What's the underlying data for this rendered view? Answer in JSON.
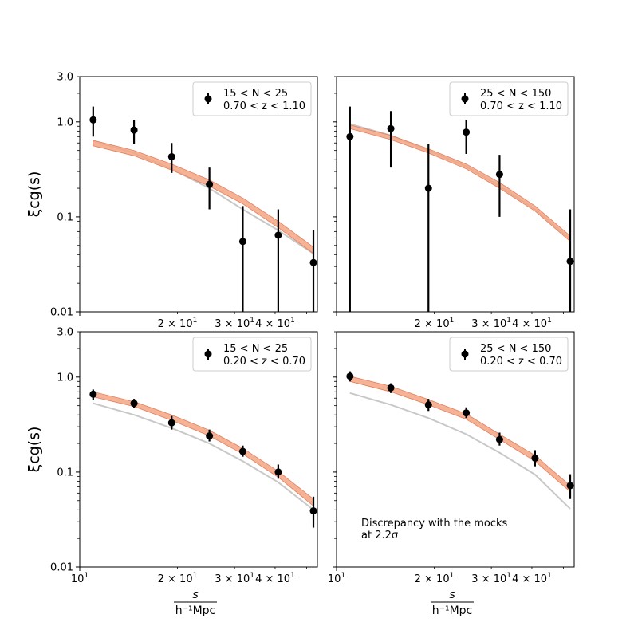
{
  "colors": {
    "model_band": "#f4a582",
    "model_line": "#e08060",
    "mock_line": "#c8c8c8",
    "data_points": "#000000",
    "axes": "#000000"
  },
  "chart_data": [
    {
      "type": "scatter",
      "panel": "top-left",
      "legend": {
        "line1": "15 < N < 25",
        "line2": "0.70 < z < 1.10",
        "placement": "top-right"
      },
      "ylabel": "ξcg(s)",
      "xlabel": "",
      "xlim": [
        10,
        54
      ],
      "ylim": [
        0.01,
        3.0
      ],
      "xscale": "log",
      "yscale": "log",
      "x_tick_labels": [
        "2 × 10^1",
        "3 × 10^1",
        "4 × 10^1"
      ],
      "y_tick_labels": [
        "0.01",
        "0.1",
        "1.0",
        "3.0"
      ],
      "points": {
        "x": [
          11.0,
          14.7,
          19.2,
          25.1,
          31.8,
          40.9,
          52.5
        ],
        "y": [
          1.05,
          0.82,
          0.43,
          0.22,
          0.055,
          0.064,
          0.033
        ],
        "y_lo": [
          0.7,
          0.58,
          0.29,
          0.12,
          0.01,
          0.01,
          0.01
        ],
        "y_hi": [
          1.45,
          1.05,
          0.6,
          0.33,
          0.13,
          0.12,
          0.073
        ]
      },
      "model": {
        "x": [
          11.0,
          14.7,
          19.2,
          25.1,
          31.8,
          40.9,
          52.5
        ],
        "lo": [
          0.56,
          0.44,
          0.31,
          0.21,
          0.137,
          0.077,
          0.041
        ],
        "hi": [
          0.64,
          0.5,
          0.36,
          0.245,
          0.158,
          0.09,
          0.048
        ]
      },
      "mocks": {
        "x": [
          11.0,
          14.7,
          19.2,
          25.1,
          31.8,
          40.9,
          52.5
        ],
        "y": [
          0.63,
          0.47,
          0.32,
          0.2,
          0.12,
          0.072,
          0.041
        ]
      },
      "annotation": ""
    },
    {
      "type": "scatter",
      "panel": "top-right",
      "legend": {
        "line1": "25 < N < 150",
        "line2": "0.70 < z < 1.10",
        "placement": "top-right"
      },
      "ylabel": "",
      "xlabel": "",
      "xlim": [
        10,
        54
      ],
      "ylim": [
        0.01,
        3.0
      ],
      "xscale": "log",
      "yscale": "log",
      "x_tick_labels": [
        "2 × 10^1",
        "3 × 10^1",
        "4 × 10^1"
      ],
      "y_tick_labels": [],
      "points": {
        "x": [
          11.0,
          14.7,
          19.2,
          25.1,
          31.8,
          52.5
        ],
        "y": [
          0.7,
          0.85,
          0.2,
          0.78,
          0.28,
          0.034
        ],
        "y_lo": [
          0.01,
          0.33,
          0.01,
          0.46,
          0.1,
          0.01
        ],
        "y_hi": [
          1.45,
          1.3,
          0.58,
          1.05,
          0.45,
          0.12
        ]
      },
      "model": {
        "x": [
          11.0,
          14.7,
          19.2,
          25.1,
          31.8,
          40.9,
          52.5
        ],
        "lo": [
          0.85,
          0.65,
          0.47,
          0.32,
          0.2,
          0.115,
          0.055
        ],
        "hi": [
          0.93,
          0.72,
          0.52,
          0.36,
          0.23,
          0.13,
          0.063
        ]
      },
      "mocks": {
        "x": [
          11.0,
          14.7,
          19.2,
          25.1,
          31.8,
          40.9,
          52.5
        ],
        "y": [
          0.95,
          0.72,
          0.5,
          0.34,
          0.21,
          0.12,
          0.058
        ]
      },
      "annotation": ""
    },
    {
      "type": "scatter",
      "panel": "bottom-left",
      "legend": {
        "line1": "15 < N < 25",
        "line2": "0.20 < z < 0.70",
        "placement": "top-right"
      },
      "ylabel": "ξcg(s)",
      "xlabel": "s / h⁻¹Mpc",
      "xlim": [
        10,
        54
      ],
      "ylim": [
        0.01,
        3.0
      ],
      "xscale": "log",
      "yscale": "log",
      "x_tick_labels": [
        "10^1",
        "2 × 10^1",
        "3 × 10^1",
        "4 × 10^1"
      ],
      "y_tick_labels": [
        "0.01",
        "0.1",
        "1.0",
        "3.0"
      ],
      "points": {
        "x": [
          11.0,
          14.7,
          19.2,
          25.1,
          31.8,
          40.9,
          52.5
        ],
        "y": [
          0.66,
          0.53,
          0.33,
          0.24,
          0.165,
          0.1,
          0.039
        ],
        "y_lo": [
          0.58,
          0.47,
          0.28,
          0.21,
          0.145,
          0.085,
          0.026
        ],
        "y_hi": [
          0.74,
          0.59,
          0.39,
          0.28,
          0.19,
          0.12,
          0.055
        ]
      },
      "model": {
        "x": [
          11.0,
          14.7,
          19.2,
          25.1,
          31.8,
          40.9,
          52.5
        ],
        "lo": [
          0.62,
          0.49,
          0.35,
          0.24,
          0.155,
          0.088,
          0.044
        ],
        "hi": [
          0.7,
          0.55,
          0.4,
          0.275,
          0.178,
          0.102,
          0.052
        ]
      },
      "mocks": {
        "x": [
          11.0,
          14.7,
          19.2,
          25.1,
          31.8,
          40.9,
          52.5
        ],
        "y": [
          0.53,
          0.4,
          0.29,
          0.2,
          0.13,
          0.078,
          0.04
        ]
      },
      "annotation": ""
    },
    {
      "type": "scatter",
      "panel": "bottom-right",
      "legend": {
        "line1": "25 < N < 150",
        "line2": "0.20 < z < 0.70",
        "placement": "top-right"
      },
      "ylabel": "",
      "xlabel": "s / h⁻¹Mpc",
      "xlim": [
        10,
        54
      ],
      "ylim": [
        0.01,
        3.0
      ],
      "xscale": "log",
      "yscale": "log",
      "x_tick_labels": [
        "10^1",
        "2 × 10^1",
        "3 × 10^1",
        "4 × 10^1"
      ],
      "y_tick_labels": [],
      "points": {
        "x": [
          11.0,
          14.7,
          19.2,
          25.1,
          31.8,
          40.9,
          52.5
        ],
        "y": [
          1.02,
          0.77,
          0.51,
          0.42,
          0.22,
          0.14,
          0.072
        ],
        "y_lo": [
          0.9,
          0.68,
          0.44,
          0.37,
          0.19,
          0.115,
          0.052
        ],
        "y_hi": [
          1.15,
          0.86,
          0.59,
          0.48,
          0.26,
          0.17,
          0.095
        ]
      },
      "model": {
        "x": [
          11.0,
          14.7,
          19.2,
          25.1,
          31.8,
          40.9,
          52.5
        ],
        "lo": [
          0.9,
          0.7,
          0.51,
          0.36,
          0.22,
          0.13,
          0.062
        ],
        "hi": [
          1.02,
          0.8,
          0.58,
          0.41,
          0.25,
          0.15,
          0.072
        ]
      },
      "mocks": {
        "x": [
          11.0,
          14.7,
          19.2,
          25.1,
          31.8,
          40.9,
          52.5
        ],
        "y": [
          0.68,
          0.51,
          0.37,
          0.25,
          0.16,
          0.094,
          0.041
        ]
      },
      "annotation": {
        "line1": "Discrepancy with the mocks",
        "line2": "at 2.2σ"
      }
    }
  ]
}
